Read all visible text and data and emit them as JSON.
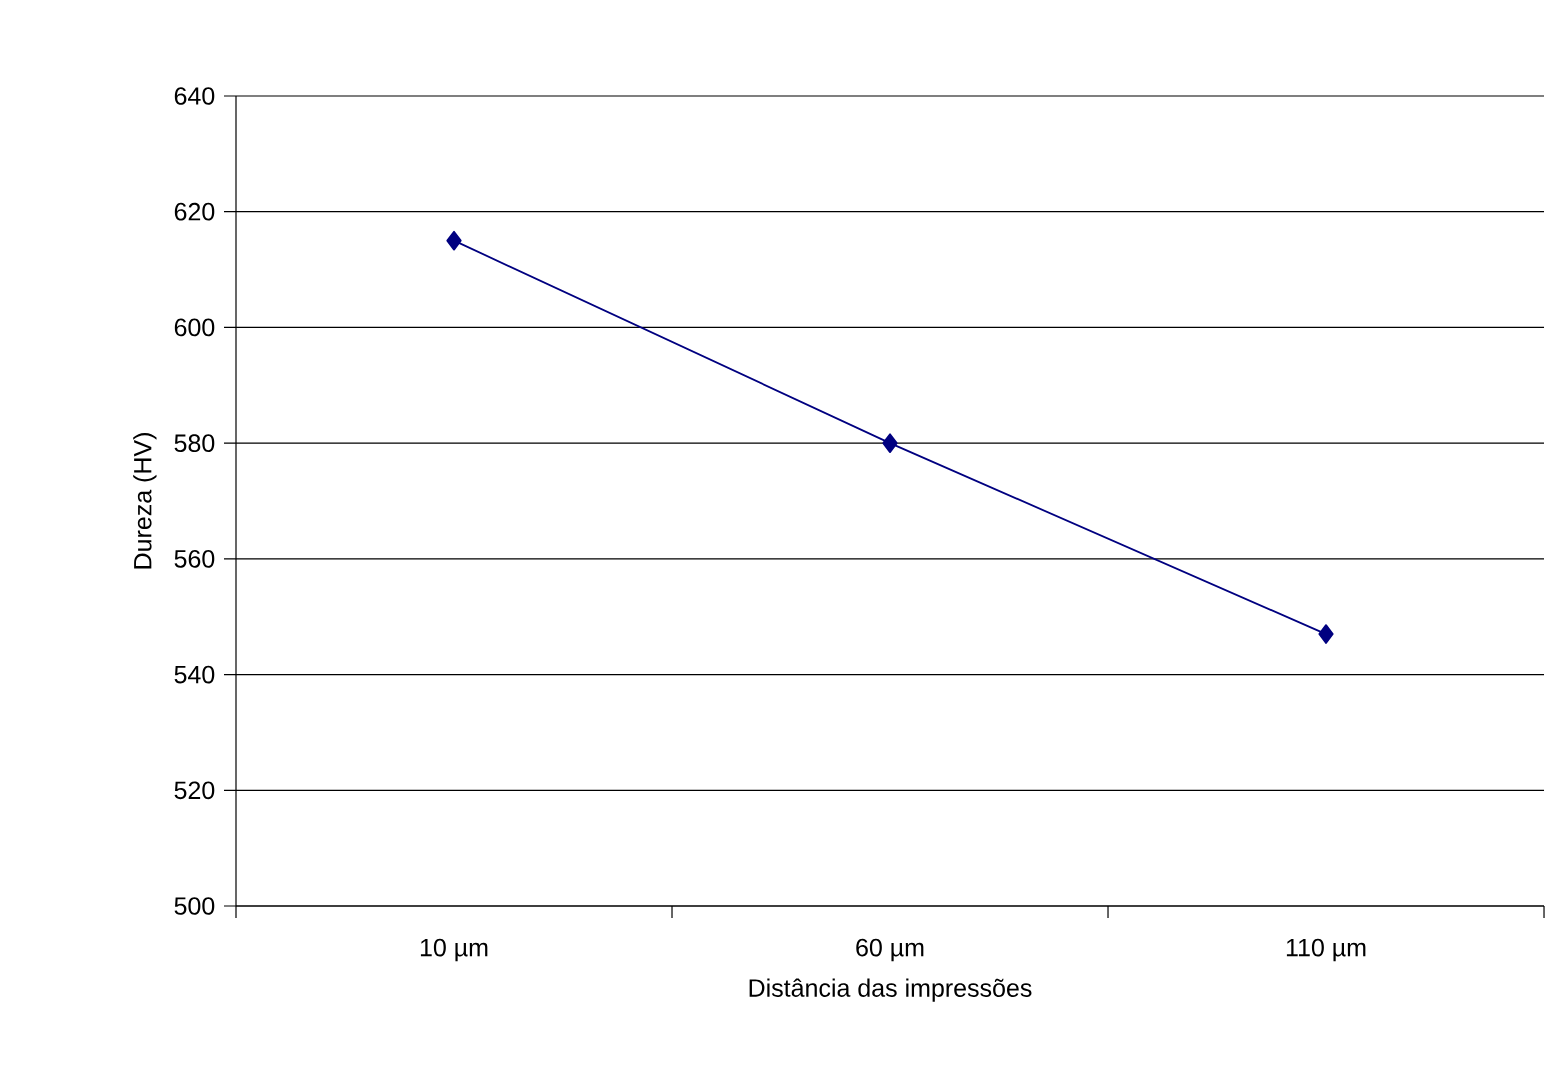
{
  "chart_data": {
    "type": "line",
    "xlabel": "Distância das impressões",
    "ylabel": "Dureza (HV)",
    "categories": [
      "10 µm",
      "60 µm",
      "110 µm"
    ],
    "series": [
      {
        "color": "#000080",
        "values": [
          615,
          580,
          547
        ]
      }
    ],
    "ylim": [
      500,
      640
    ],
    "yticks": [
      500,
      520,
      540,
      560,
      580,
      600,
      620,
      640
    ],
    "grid": "y",
    "marker": "diamond",
    "line_style": "solid"
  }
}
